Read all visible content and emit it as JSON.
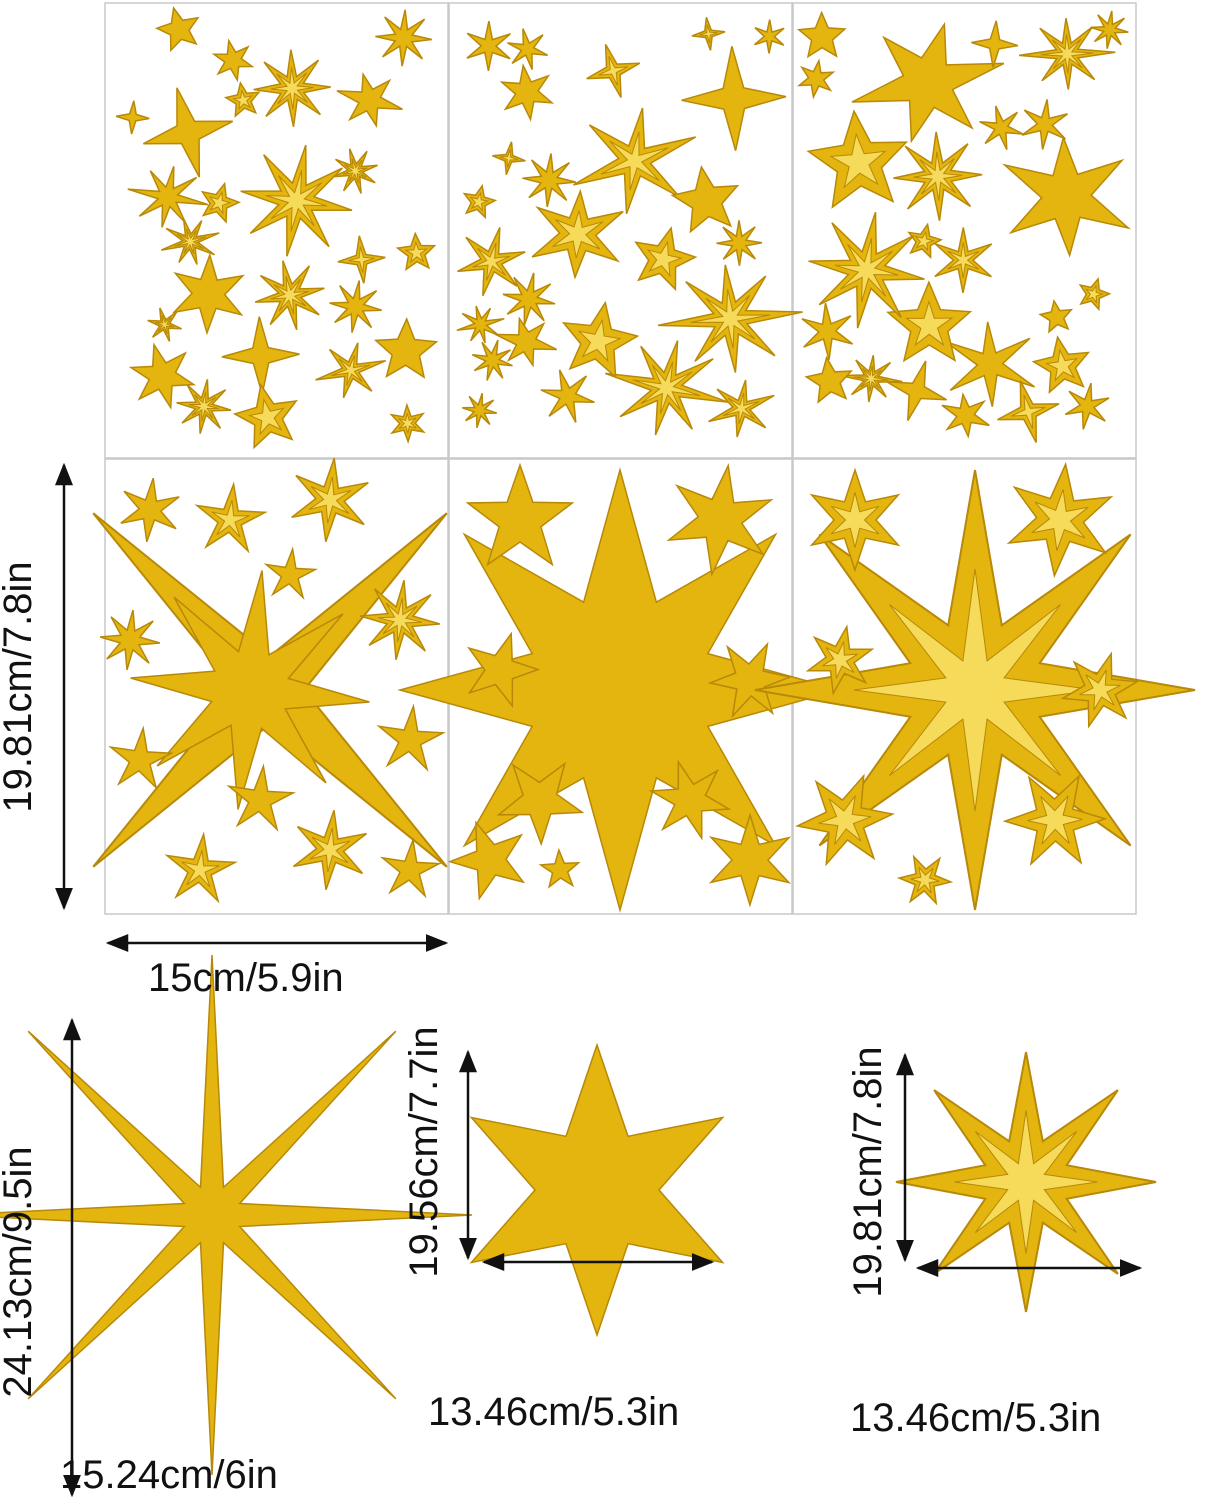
{
  "colors": {
    "gold": "#E3B50E",
    "gold_dark": "#B88808",
    "gold_light": "#F6DA5A",
    "panel_border": "#c8c8c8",
    "text": "#111111"
  },
  "sheet": {
    "width_label": "15cm/5.9in",
    "height_label": "19.81cm/7.8in"
  },
  "singles": [
    {
      "name": "eight-point-star",
      "width_label": "15.24cm/6in",
      "height_label": "24.13cm/9.5in"
    },
    {
      "name": "six-point-star",
      "width_label": "13.46cm/5.3in",
      "height_label": "19.56cm/7.7in"
    },
    {
      "name": "cutout-star",
      "width_label": "13.46cm/5.3in",
      "height_label": "19.81cm/7.8in"
    }
  ]
}
